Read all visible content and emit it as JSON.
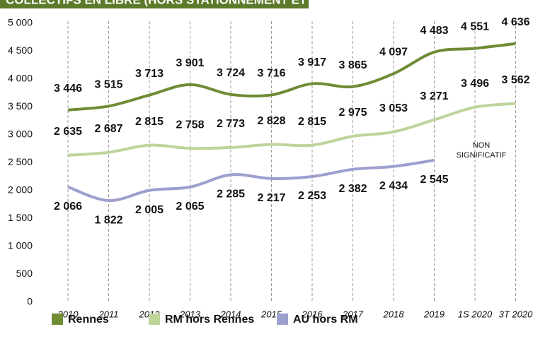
{
  "chart_data": {
    "type": "line",
    "title": "COLLECTIFS EN LIBRE (HORS STATIONNEMENT ET TVA PLEINE)",
    "categories": [
      "2010",
      "2011",
      "2012",
      "2013",
      "2014",
      "2015",
      "2016",
      "2017",
      "2018",
      "2019",
      "1S 2020",
      "3T 2020"
    ],
    "series": [
      {
        "name": "Rennes",
        "color": "#6e8c34",
        "values": [
          3446,
          3515,
          3713,
          3901,
          3724,
          3716,
          3917,
          3865,
          4097,
          4483,
          4551,
          4636
        ],
        "value_labels": [
          "3 446",
          "3 515",
          "3 713",
          "3 901",
          "3 724",
          "3 716",
          "3 917",
          "3 865",
          "4 097",
          "4 483",
          "4 551",
          "4 636"
        ]
      },
      {
        "name": "RM hors Rennes",
        "color": "#bdd49b",
        "values": [
          2635,
          2687,
          2815,
          2758,
          2773,
          2828,
          2815,
          2975,
          3053,
          3271,
          3496,
          3562
        ],
        "value_labels": [
          "2 635",
          "2 687",
          "2 815",
          "2 758",
          "2 773",
          "2 828",
          "2 815",
          "2 975",
          "3 053",
          "3 271",
          "3 496",
          "3 562"
        ]
      },
      {
        "name": "AU hors RM",
        "color": "#9d9fcf",
        "values": [
          2066,
          1822,
          2005,
          2065,
          2285,
          2217,
          2253,
          2382,
          2434,
          2545,
          null,
          null
        ],
        "value_labels": [
          "2 066",
          "1 822",
          "2 005",
          "2 065",
          "2 285",
          "2 217",
          "2 253",
          "2 382",
          "2 434",
          "2 545",
          null,
          null
        ]
      }
    ],
    "annotation": "NON SIGNIFICATIF",
    "ylim": [
      0,
      5000
    ],
    "yticks": [
      0,
      500,
      {
        "value": 1000,
        "label": "1 000"
      },
      {
        "value": 1500,
        "label": "1 500"
      },
      {
        "value": 2000,
        "label": "2 000"
      },
      {
        "value": 2500,
        "label": "2 500"
      },
      {
        "value": 3000,
        "label": "3 000"
      },
      {
        "value": 3500,
        "label": "3 500"
      },
      {
        "value": 4000,
        "label": "4 000"
      },
      {
        "value": 4500,
        "label": "4 500"
      },
      {
        "value": 5000,
        "label": "5 000"
      }
    ],
    "legend": "bottom"
  }
}
